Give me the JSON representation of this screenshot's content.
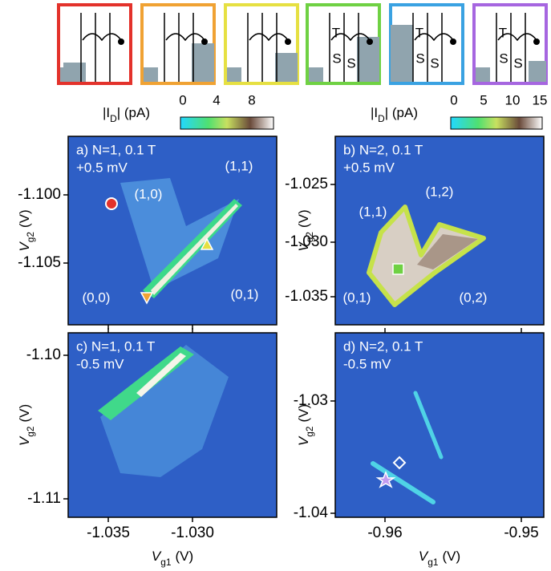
{
  "insets": [
    {
      "color": "#e3322b",
      "labels": []
    },
    {
      "color": "#f0a233",
      "labels": []
    },
    {
      "color": "#e6e042",
      "labels": []
    },
    {
      "color": "#6fd143",
      "labels": [
        "T",
        "S",
        "S"
      ]
    },
    {
      "color": "#3aa2e2",
      "labels": [
        "T",
        "S",
        "S"
      ]
    },
    {
      "color": "#a666e0",
      "labels": [
        "T",
        "S",
        "S"
      ]
    }
  ],
  "colorbars": [
    {
      "label": {
        "before": "|I",
        "sub": "D",
        "after": "| (pA)"
      },
      "ticks": [
        "0",
        "4",
        "8"
      ]
    },
    {
      "label": {
        "before": "|I",
        "sub": "D",
        "after": "| (pA)"
      },
      "ticks": [
        "0",
        "5",
        "10",
        "15"
      ]
    }
  ],
  "panels": [
    {
      "title": "a) N=1, 0.1 T",
      "bias": "+0.5 mV",
      "yticks": [
        "-1.100",
        "-1.105"
      ],
      "ylabel": {
        "symbol": "V",
        "sub": "g2",
        "unit": "(V)"
      },
      "regions": [
        "(1,1)",
        "(1,0)",
        "(0,0)",
        "(0,1)"
      ]
    },
    {
      "title": "b) N=2, 0.1 T",
      "bias": "+0.5 mV",
      "yticks": [
        "-1.025",
        "-1.030",
        "-1.035"
      ],
      "ylabel": {
        "symbol": "V",
        "sub": "g2",
        "unit": "(V)"
      },
      "regions": [
        "(1,2)",
        "(1,1)",
        "(0,1)",
        "(0,2)"
      ]
    },
    {
      "title": "c) N=1, 0.1 T",
      "bias": "-0.5 mV",
      "yticks": [
        "-1.10",
        "-1.11"
      ],
      "ylabel": {
        "symbol": "V",
        "sub": "g2",
        "unit": "(V)"
      },
      "xticks": [
        "-1.035",
        "-1.030"
      ],
      "xlabel": {
        "symbol": "V",
        "sub": "g1",
        "unit": "(V)"
      }
    },
    {
      "title": "d) N=2, 0.1 T",
      "bias": "-0.5 mV",
      "yticks": [
        "-1.03",
        "-1.04"
      ],
      "ylabel": {
        "symbol": "V",
        "sub": "g2",
        "unit": "(V)"
      },
      "xticks": [
        "-0.96",
        "-0.95"
      ],
      "xlabel": {
        "symbol": "V",
        "sub": "g1",
        "unit": "(V)"
      }
    }
  ]
}
